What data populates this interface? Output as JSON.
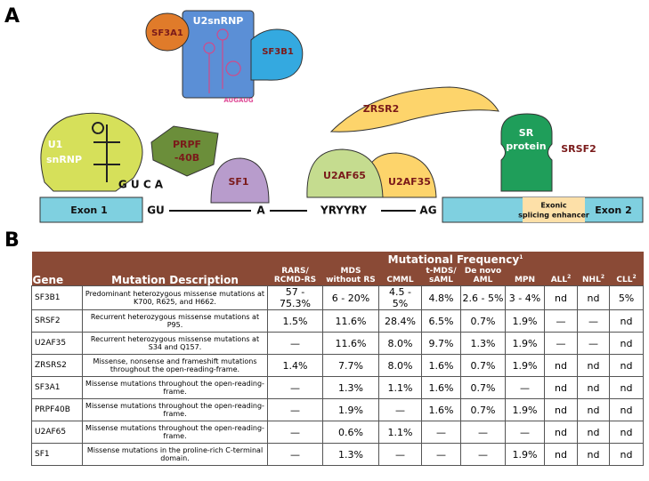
{
  "panels": [
    "A",
    "B"
  ],
  "diagram": {
    "nodes": [
      "U2snRNP",
      "SF3A1",
      "SF3B1",
      "AUGAUG",
      "U1",
      "snRNP",
      "G U C A",
      "PRPF",
      "-40B",
      "SF1",
      "ZRSR2",
      "U2AF65",
      "U2AF35",
      "SR",
      "protein",
      "SRSF2",
      "Exon 1",
      "GU",
      "A",
      "YRYYRY",
      "AG",
      "Exonic",
      "splicing enhancer",
      "Exon 2"
    ]
  },
  "table": {
    "group_header": {
      "label": "Mutational Frequency",
      "note": "1"
    },
    "columns": [
      {
        "label": "Gene"
      },
      {
        "label": "Mutation Description"
      },
      {
        "label": "RARS/ RCMD-RS"
      },
      {
        "label": "MDS without RS"
      },
      {
        "label": "CMML"
      },
      {
        "label": "t-MDS/ sAML"
      },
      {
        "label": "De novo AML"
      },
      {
        "label": "MPN"
      },
      {
        "label": "ALL",
        "note": "2"
      },
      {
        "label": "NHL",
        "note": "2"
      },
      {
        "label": "CLL",
        "note": "2"
      }
    ],
    "rows": [
      [
        "SF3B1",
        "Predominant heterozygous missense mutations at K700, R625, and H662.",
        "57 - 75.3%",
        "6 - 20%",
        "4.5 - 5%",
        "4.8%",
        "2.6 - 5%",
        "3 - 4%",
        "nd",
        "nd",
        "5%"
      ],
      [
        "SRSF2",
        "Recurrent heterozygous missense mutations at P95.",
        "1.5%",
        "11.6%",
        "28.4%",
        "6.5%",
        "0.7%",
        "1.9%",
        "—",
        "—",
        "nd"
      ],
      [
        "U2AF35",
        "Recurrent heterozygous missense mutations at S34 and Q157.",
        "—",
        "11.6%",
        "8.0%",
        "9.7%",
        "1.3%",
        "1.9%",
        "—",
        "—",
        "nd"
      ],
      [
        "ZRSRS2",
        "Missense, nonsense and frameshift mutations throughout the open-reading-frame.",
        "1.4%",
        "7.7%",
        "8.0%",
        "1.6%",
        "0.7%",
        "1.9%",
        "nd",
        "nd",
        "nd"
      ],
      [
        "SF3A1",
        "Missense mutations throughout the open-reading-frame.",
        "—",
        "1.3%",
        "1.1%",
        "1.6%",
        "0.7%",
        "—",
        "nd",
        "nd",
        "nd"
      ],
      [
        "PRPF40B",
        "Missense mutations throughout the open-reading-frame.",
        "—",
        "1.9%",
        "—",
        "1.6%",
        "0.7%",
        "1.9%",
        "nd",
        "nd",
        "nd"
      ],
      [
        "U2AF65",
        "Missense mutations throughout the open-reading-frame.",
        "—",
        "0.6%",
        "1.1%",
        "—",
        "—",
        "—",
        "nd",
        "nd",
        "nd"
      ],
      [
        "SF1",
        "Missense mutations in the proline-rich C-terminal domain.",
        "—",
        "1.3%",
        "—",
        "—",
        "—",
        "1.9%",
        "nd",
        "nd",
        "nd"
      ]
    ]
  }
}
